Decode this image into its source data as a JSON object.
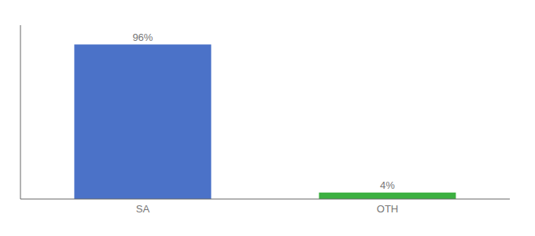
{
  "chart_data": {
    "type": "bar",
    "categories": [
      "SA",
      "OTH"
    ],
    "values": [
      96,
      4
    ],
    "value_labels": [
      "96%",
      "4%"
    ],
    "colors": [
      "#4B72C8",
      "#3cb040"
    ],
    "ylim": [
      0,
      108
    ],
    "yticks": [],
    "tick_labels": "x",
    "data_labels": true,
    "grid": false
  }
}
